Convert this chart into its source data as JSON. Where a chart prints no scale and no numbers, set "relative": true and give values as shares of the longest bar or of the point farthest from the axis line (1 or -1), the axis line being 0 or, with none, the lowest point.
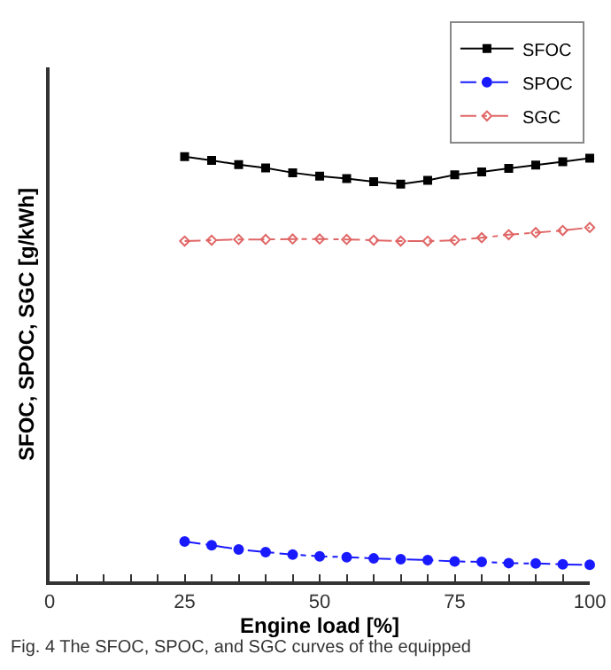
{
  "chart_data": {
    "type": "line",
    "relative": true,
    "xlabel": "Engine load [%]",
    "ylabel": "SFOC, SPOC, SGC [g/kWh]",
    "x": [
      25,
      30,
      35,
      40,
      45,
      50,
      55,
      60,
      65,
      70,
      75,
      80,
      85,
      90,
      95,
      100
    ],
    "xlim": [
      0,
      100
    ],
    "xticks": [
      0,
      {
        "value": 5,
        "label": null
      },
      {
        "value": 10,
        "label": null
      },
      {
        "value": 15,
        "label": null
      },
      {
        "value": 20,
        "label": null
      },
      25,
      {
        "value": 30,
        "label": null
      },
      {
        "value": 35,
        "label": null
      },
      {
        "value": 40,
        "label": null
      },
      {
        "value": 45,
        "label": null
      },
      50,
      {
        "value": 55,
        "label": null
      },
      {
        "value": 60,
        "label": null
      },
      {
        "value": 65,
        "label": null
      },
      {
        "value": 70,
        "label": null
      },
      75,
      {
        "value": 80,
        "label": null
      },
      {
        "value": 85,
        "label": null
      },
      {
        "value": 90,
        "label": null
      },
      {
        "value": 95,
        "label": null
      },
      100
    ],
    "tick_labels": "x",
    "grid": false,
    "legend": "top right",
    "series": [
      {
        "name": "SFOC",
        "color": "#000000",
        "marker": "square",
        "line_style": "solid",
        "values": [
          1,
          0.991,
          0.981,
          0.973,
          0.962,
          0.954,
          0.948,
          0.941,
          0.935,
          0.944,
          0.957,
          0.964,
          0.972,
          0.98,
          0.988,
          0.996
        ]
      },
      {
        "name": "SPOC",
        "color": "#1a1aff",
        "marker": "circle",
        "line_style": "dashed",
        "values": [
          0.094,
          0.085,
          0.075,
          0.069,
          0.063,
          0.059,
          0.057,
          0.054,
          0.052,
          0.05,
          0.047,
          0.046,
          0.043,
          0.042,
          0.04,
          0.039
        ]
      },
      {
        "name": "SGC",
        "color": "#e06666",
        "marker": "diamond",
        "line_style": "dashed",
        "values": [
          0.801,
          0.803,
          0.805,
          0.805,
          0.806,
          0.806,
          0.805,
          0.803,
          0.801,
          0.801,
          0.803,
          0.809,
          0.816,
          0.821,
          0.826,
          0.833
        ]
      }
    ],
    "annotations": [
      "Fig. 4 The SFOC, SPOC, and SGC curves of the equipped"
    ]
  }
}
